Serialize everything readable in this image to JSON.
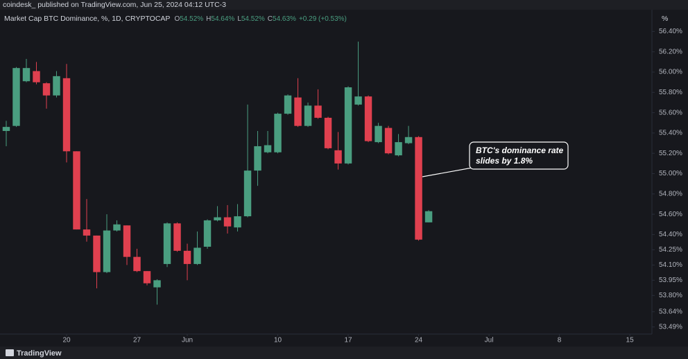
{
  "header": {
    "publisher": "coindesk_ published on TradingView.com, Jun 25, 2024 04:12 UTC-3",
    "symbol": "Market Cap BTC Dominance, %, 1D, CRYPTOCAP",
    "ohlc": [
      {
        "key": "O",
        "value": "54.52%"
      },
      {
        "key": "H",
        "value": "54.64%"
      },
      {
        "key": "L",
        "value": "54.52%"
      },
      {
        "key": "C",
        "value": "54.63%"
      }
    ],
    "change": "+0.29 (+0.53%)",
    "unit": "%"
  },
  "footer": {
    "logo": "TradingView"
  },
  "chart_data": {
    "type": "candlestick",
    "x": [
      0,
      1,
      2,
      3,
      4,
      5,
      6,
      7,
      8,
      9,
      10,
      11,
      12,
      13,
      14,
      15,
      16,
      17,
      18,
      19,
      20,
      21,
      22,
      23,
      24,
      25,
      26,
      27,
      28,
      29,
      30,
      31,
      32,
      33,
      34,
      35,
      36,
      37,
      38,
      39,
      40,
      41,
      42
    ],
    "open": [
      55.42,
      55.47,
      55.91,
      56.01,
      55.89,
      55.77,
      55.94,
      55.22,
      54.45,
      54.39,
      54.03,
      54.44,
      54.49,
      54.18,
      54.04,
      53.88,
      54.11,
      54.51,
      54.24,
      54.11,
      54.28,
      54.54,
      54.57,
      54.47,
      54.58,
      55.03,
      55.21,
      55.21,
      55.59,
      55.75,
      55.47,
      55.67,
      55.55,
      55.23,
      55.1,
      55.68,
      55.76,
      55.31,
      55.45,
      55.18,
      55.3,
      55.36,
      54.52
    ],
    "high": [
      55.52,
      56.05,
      56.13,
      56.1,
      55.9,
      56.01,
      56.08,
      55.22,
      54.75,
      54.39,
      54.6,
      54.54,
      54.49,
      54.26,
      54.04,
      53.96,
      54.52,
      54.52,
      54.31,
      54.43,
      54.55,
      54.68,
      54.69,
      54.7,
      55.68,
      55.42,
      55.42,
      55.6,
      55.78,
      55.94,
      55.7,
      55.83,
      55.56,
      55.41,
      55.86,
      56.3,
      55.77,
      55.5,
      55.47,
      55.39,
      55.47,
      55.37,
      54.64
    ],
    "low": [
      55.27,
      55.46,
      55.9,
      55.88,
      55.64,
      55.75,
      55.11,
      54.45,
      54.33,
      53.87,
      54.02,
      54.43,
      54.1,
      54.03,
      53.9,
      53.71,
      54.08,
      54.23,
      53.95,
      54.1,
      54.26,
      54.53,
      54.41,
      54.43,
      54.57,
      54.88,
      55.2,
      55.2,
      55.58,
      55.46,
      55.46,
      55.54,
      55.24,
      55.04,
      55.09,
      55.67,
      55.31,
      55.3,
      55.19,
      55.17,
      55.29,
      54.34,
      54.52
    ],
    "close": [
      55.46,
      56.04,
      56.04,
      55.9,
      55.77,
      55.96,
      55.22,
      54.45,
      54.39,
      54.03,
      54.44,
      54.5,
      54.18,
      54.04,
      53.92,
      53.95,
      54.51,
      54.24,
      54.11,
      54.27,
      54.54,
      54.57,
      54.48,
      54.58,
      55.03,
      55.27,
      55.28,
      55.59,
      55.77,
      55.47,
      55.67,
      55.55,
      55.25,
      55.1,
      55.85,
      55.76,
      55.32,
      55.47,
      55.2,
      55.31,
      55.36,
      54.35,
      54.63
    ],
    "up_color": "#4a9e80",
    "down_color": "#e0404f",
    "xlim": [
      -0.62,
      64.2
    ],
    "xticks": [
      {
        "value": 6,
        "label": "20"
      },
      {
        "value": 13,
        "label": "27"
      },
      {
        "value": 18,
        "label": "Jun"
      },
      {
        "value": 27,
        "label": "10"
      },
      {
        "value": 34,
        "label": "17"
      },
      {
        "value": 41,
        "label": "24"
      },
      {
        "value": 48,
        "label": "Jul"
      },
      {
        "value": 55,
        "label": "8"
      },
      {
        "value": 62,
        "label": "15"
      }
    ],
    "ylim": [
      53.42,
      56.71
    ],
    "yticks": [
      {
        "value": 56.4,
        "label": "56.40%"
      },
      {
        "value": 56.2,
        "label": "56.20%"
      },
      {
        "value": 56.0,
        "label": "56.00%"
      },
      {
        "value": 55.8,
        "label": "55.80%"
      },
      {
        "value": 55.6,
        "label": "55.60%"
      },
      {
        "value": 55.4,
        "label": "55.40%"
      },
      {
        "value": 55.2,
        "label": "55.20%"
      },
      {
        "value": 55.0,
        "label": "55.00%"
      },
      {
        "value": 54.8,
        "label": "54.80%"
      },
      {
        "value": 54.6,
        "label": "54.60%"
      },
      {
        "value": 54.4,
        "label": "54.40%"
      },
      {
        "value": 54.25,
        "label": "54.25%"
      },
      {
        "value": 54.1,
        "label": "54.10%"
      },
      {
        "value": 53.95,
        "label": "53.95%"
      },
      {
        "value": 53.8,
        "label": "53.80%"
      },
      {
        "value": 53.64,
        "label": "53.64%"
      },
      {
        "value": 53.49,
        "label": "53.49%"
      }
    ],
    "grid": false,
    "annotation": [
      "BTC's dominance rate",
      "slides by 1.8%"
    ]
  }
}
